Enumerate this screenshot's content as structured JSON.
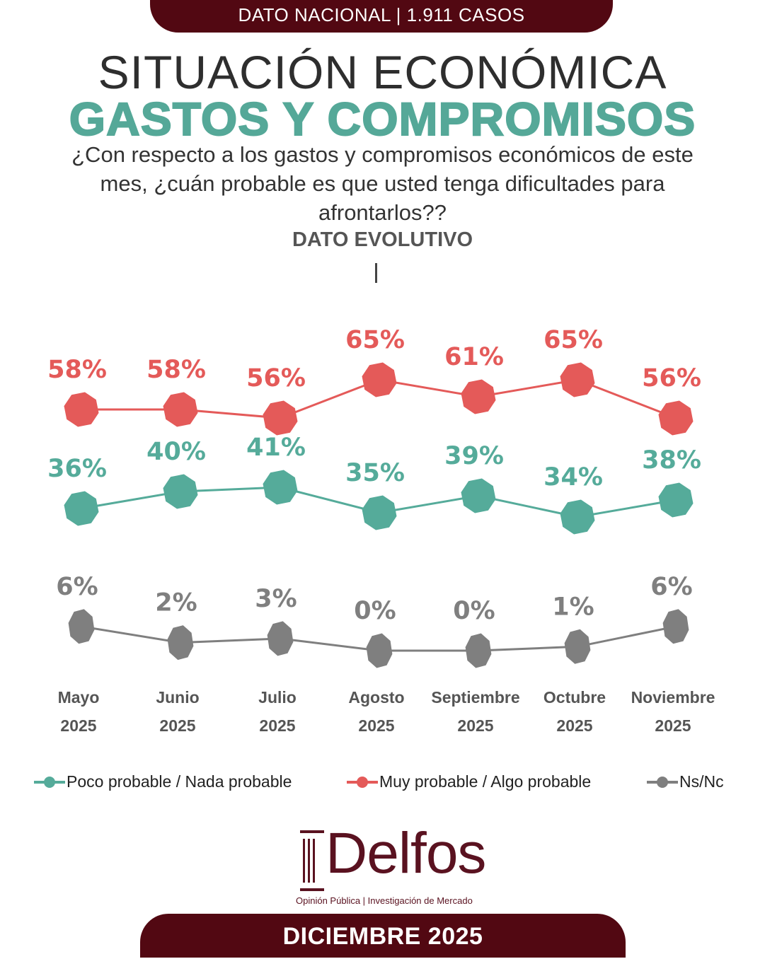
{
  "header": {
    "banner": "DATO NACIONAL | 1.911 CASOS",
    "title_line1": "SITUACIÓN ECONÓMICA",
    "title_line2": "GASTOS Y COMPROMISOS",
    "question": "¿Con respecto a los gastos y compromisos económicos de este mes, ¿cuán probable es que usted tenga dificultades para afrontarlos??",
    "subtitle": "DATO EVOLUTIVO"
  },
  "colors": {
    "brand": "#520812",
    "teal": "#55ab9a",
    "red": "#e45a59",
    "gray": "#7f7f7f"
  },
  "chart_data": {
    "type": "line",
    "title": "GASTOS Y COMPROMISOS",
    "xlabel": "",
    "ylabel": "",
    "categories": [
      [
        "Mayo",
        "2025"
      ],
      [
        "Junio",
        "2025"
      ],
      [
        "Julio",
        "2025"
      ],
      [
        "Agosto",
        "2025"
      ],
      [
        "Septiembre",
        "2025"
      ],
      [
        "Octubre",
        "2025"
      ],
      [
        "Noviembre",
        "2025"
      ]
    ],
    "series": [
      {
        "name": "Muy probable / Algo probable",
        "color": "#e45a59",
        "values": [
          58,
          58,
          56,
          65,
          61,
          65,
          56
        ]
      },
      {
        "name": "Poco probable / Nada probable",
        "color": "#55ab9a",
        "values": [
          36,
          40,
          41,
          35,
          39,
          34,
          38
        ]
      },
      {
        "name": "Ns/Nc",
        "color": "#7f7f7f",
        "values": [
          6,
          2,
          3,
          0,
          0,
          1,
          6
        ]
      }
    ],
    "value_suffix": "%",
    "grid": false,
    "legend_position": "bottom"
  },
  "legend": [
    {
      "label": "Poco probable / Nada probable",
      "color": "#55ab9a"
    },
    {
      "label": "Muy probable / Algo probable",
      "color": "#e45a59"
    },
    {
      "label": "Ns/Nc",
      "color": "#7f7f7f"
    }
  ],
  "footer": {
    "logo_name": "Delfos",
    "logo_tagline": "Opinión Pública | Investigación de Mercado",
    "date": "DICIEMBRE 2025"
  }
}
